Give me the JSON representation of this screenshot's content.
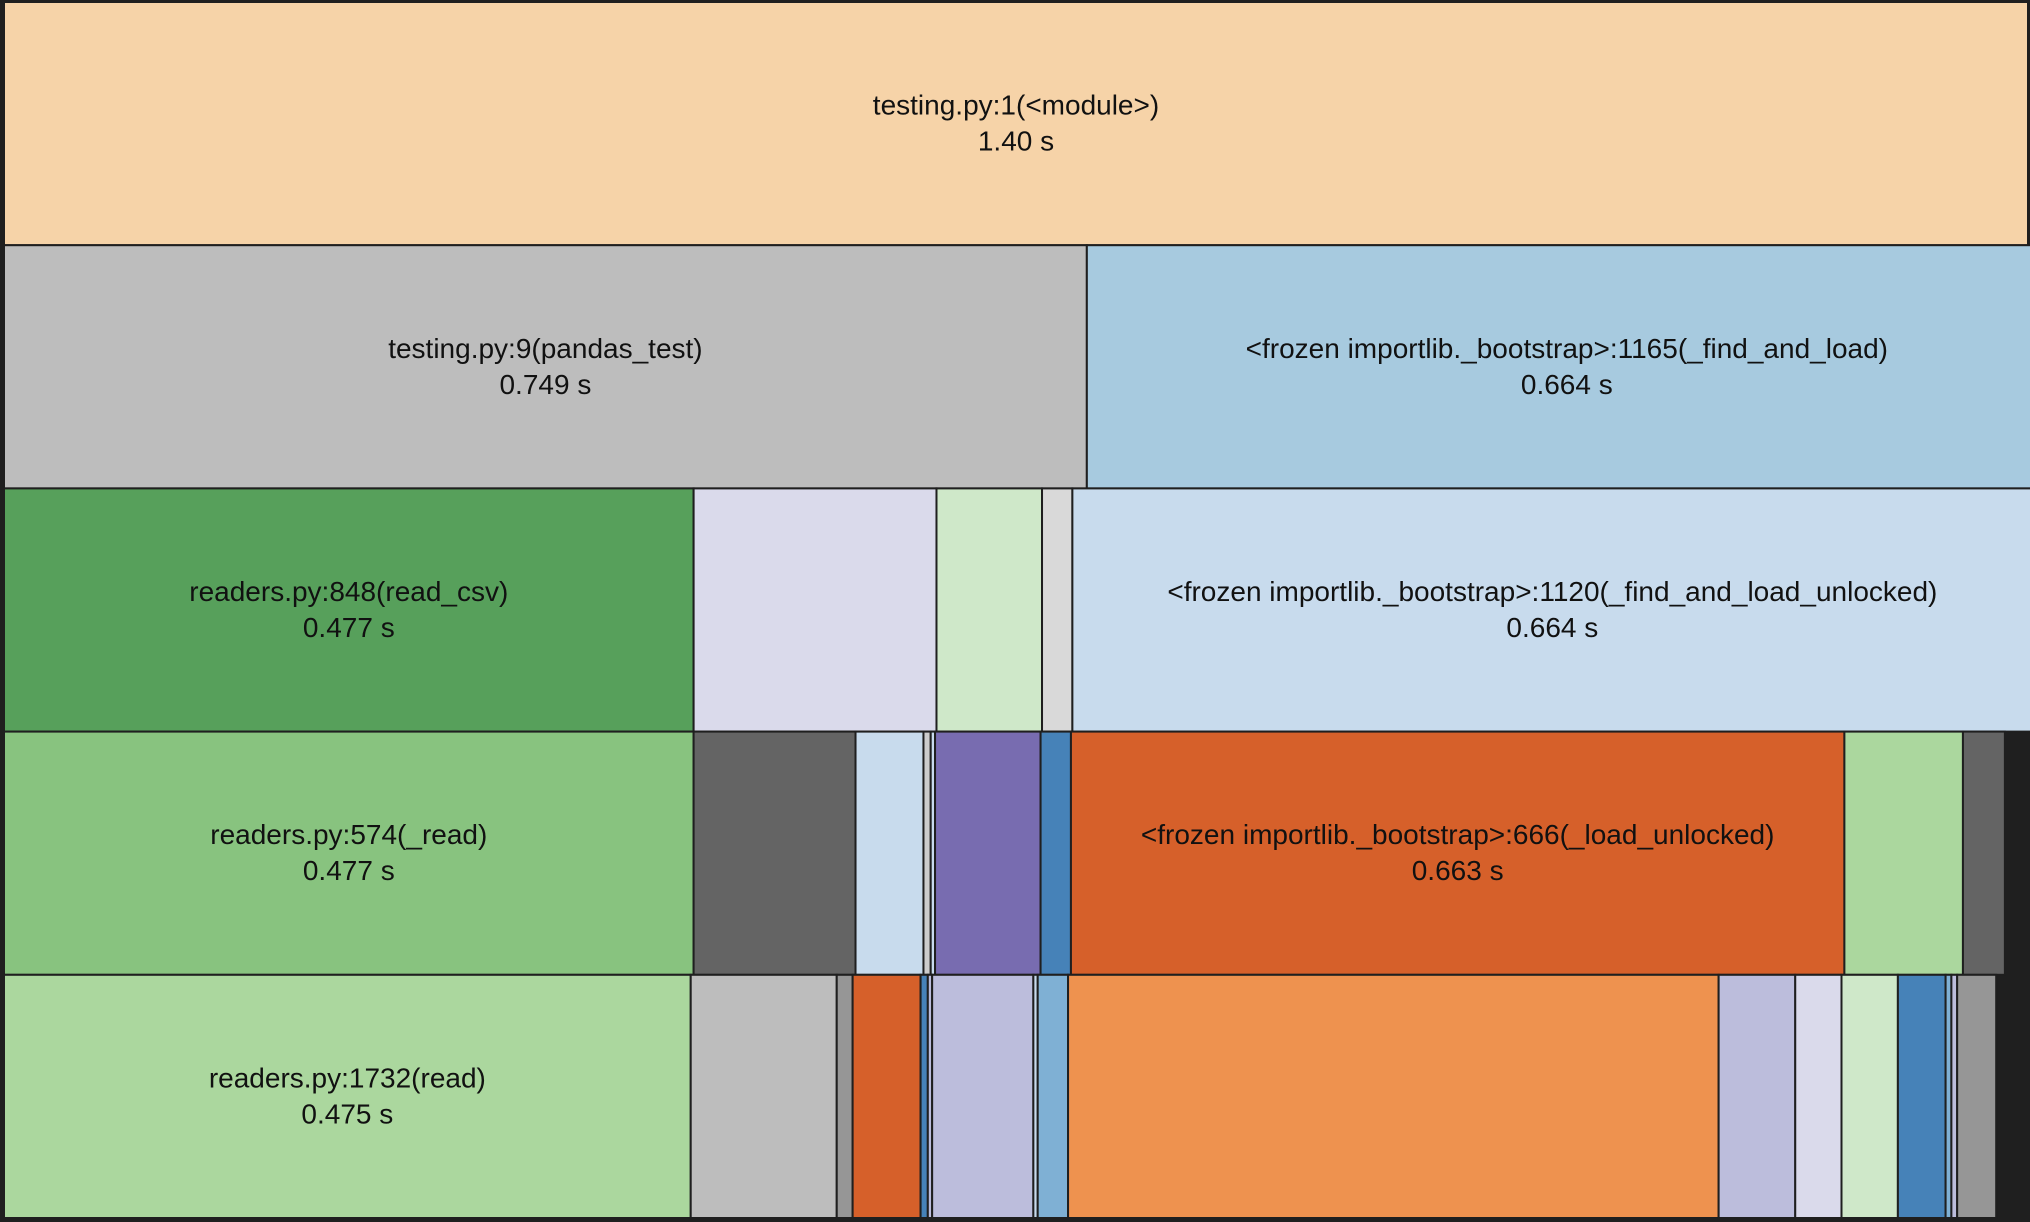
{
  "chart_data": {
    "type": "icicle",
    "time_unit": "s",
    "levels": [
      [
        {
          "label": "testing.py:1(<module>)",
          "time": "1.40 s",
          "value": 1.4,
          "color": "#f6d3a8"
        }
      ],
      [
        {
          "label": "testing.py:9(pandas_test)",
          "time": "0.749 s",
          "value": 0.749,
          "color": "#bdbdbd"
        },
        {
          "label": "<frozen importlib._bootstrap>:1165(_find_and_load)",
          "time": "0.664 s",
          "value": 0.664,
          "color": "#a7cadf"
        }
      ],
      [
        {
          "label": "readers.py:848(read_csv)",
          "time": "0.477 s",
          "value": 0.477,
          "color": "#57a05b"
        },
        {
          "value": 0.168,
          "color": "#dadaeb"
        },
        {
          "value": 0.073,
          "color": "#cfe8c9"
        },
        {
          "value": 0.021,
          "color": "#d9d9d9"
        },
        {
          "label": "<frozen importlib._bootstrap>:1120(_find_and_load_unlocked)",
          "time": "0.664 s",
          "value": 0.664,
          "color": "#c8dbed"
        }
      ],
      [
        {
          "label": "readers.py:574(_read)",
          "time": "0.477 s",
          "value": 0.477,
          "color": "#88c37f"
        },
        {
          "value": 0.112,
          "color": "#646464"
        },
        {
          "value": 0.047,
          "color": "#c8dbed"
        },
        {
          "value": 0.005,
          "color": "#cccccc"
        },
        {
          "value": 0.003,
          "color": "#c8dbed"
        },
        {
          "value": 0.073,
          "color": "#786cb0"
        },
        {
          "value": 0.021,
          "color": "#4682b8"
        },
        {
          "label": "<frozen importlib._bootstrap>:666(_load_unlocked)",
          "time": "0.663 s",
          "value": 0.535,
          "color": "#d6602a"
        },
        {
          "value": 0.082,
          "color": "#abd79e"
        },
        {
          "value": 0.029,
          "color": "#646464"
        }
      ],
      [
        {
          "label": "readers.py:1732(read)",
          "time": "0.475 s",
          "value": 0.475,
          "color": "#abd79e"
        },
        {
          "value": 0.101,
          "color": "#bdbdbd"
        },
        {
          "value": 0.011,
          "color": "#969696"
        },
        {
          "value": 0.047,
          "color": "#d6602a"
        },
        {
          "value": 0.005,
          "color": "#4682b8"
        },
        {
          "value": 0.003,
          "color": "#bcbddc"
        },
        {
          "value": 0.07,
          "color": "#bcbddc"
        },
        {
          "value": 0.003,
          "color": "#c8dbed"
        },
        {
          "value": 0.021,
          "color": "#7fb0d4"
        },
        {
          "value": 0.45,
          "color": "#ee924f"
        },
        {
          "value": 0.053,
          "color": "#bcbddc"
        },
        {
          "value": 0.032,
          "color": "#dadaeb"
        },
        {
          "value": 0.039,
          "color": "#cfe8c9"
        },
        {
          "value": 0.033,
          "color": "#4682b8"
        },
        {
          "value": 0.004,
          "color": "#7fb0d4"
        },
        {
          "value": 0.004,
          "color": "#bcbddc"
        },
        {
          "value": 0.027,
          "color": "#969696"
        }
      ]
    ]
  }
}
